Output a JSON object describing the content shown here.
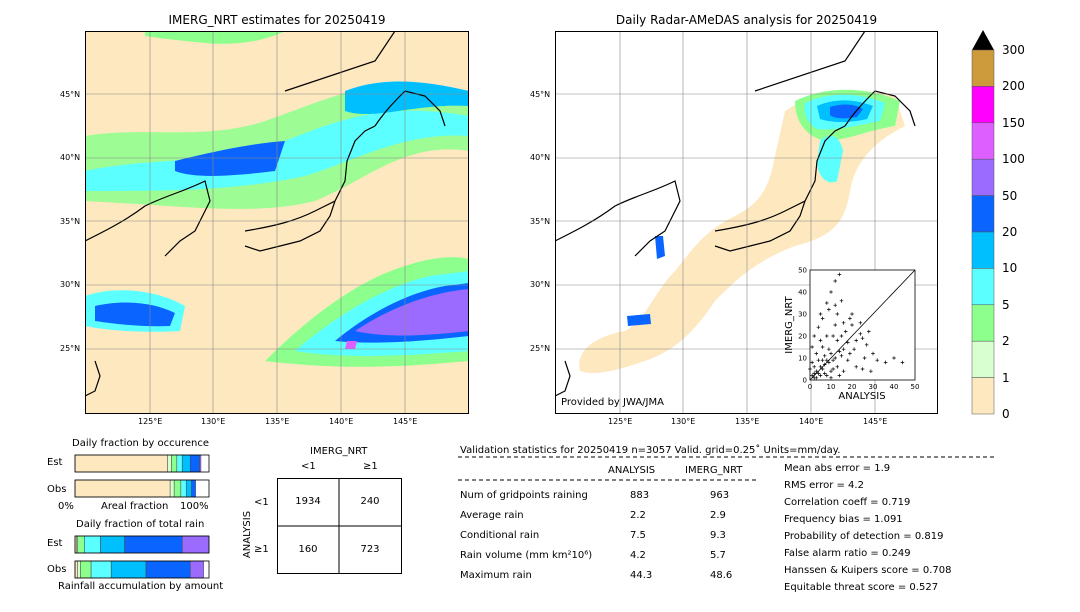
{
  "left_map": {
    "title": "IMERG_NRT estimates for 20250419",
    "lat_labels": [
      "45°N",
      "40°N",
      "35°N",
      "30°N",
      "25°N"
    ],
    "lon_labels": [
      "125°E",
      "130°E",
      "135°E",
      "140°E",
      "145°E"
    ]
  },
  "right_map": {
    "title": "Daily Radar-AMeDAS analysis for 20250419",
    "lat_labels": [
      "45°N",
      "40°N",
      "35°N",
      "30°N",
      "25°N"
    ],
    "lon_labels": [
      "125°E",
      "130°E",
      "135°E",
      "140°E",
      "145°E"
    ],
    "credit": "Provided by JWA/JMA"
  },
  "colorbar": {
    "labels": [
      "300",
      "200",
      "150",
      "100",
      "50",
      "20",
      "10",
      "5",
      "2",
      "1",
      "0"
    ],
    "colors": [
      "#cd9a3c",
      "#ff00ff",
      "#dd5fff",
      "#9b6bff",
      "#0a64ff",
      "#00bfff",
      "#5cffff",
      "#8cff8c",
      "#d8ffd0",
      "#fde8c0"
    ]
  },
  "occurrence": {
    "title": "Daily fraction by occurence",
    "row_est": "Est",
    "row_obs": "Obs",
    "axis_left": "0%",
    "axis_mid": "Areal fraction",
    "axis_right": "100%"
  },
  "rainfall": {
    "title": "Daily fraction of total rain",
    "row_est": "Est",
    "row_obs": "Obs",
    "caption": "Rainfall accumulation by amount"
  },
  "contingency": {
    "title": "IMERG_NRT",
    "col_lt": "<1",
    "col_ge": "≥1",
    "row_axis": "ANALYSIS",
    "row_lt": "<1",
    "row_ge": "≥1",
    "cells": [
      "1934",
      "240",
      "160",
      "723"
    ]
  },
  "validation": {
    "header": "Validation statistics for 20250419  n=3057 Valid. grid=0.25˚ Units=mm/day.",
    "col_analysis": "ANALYSIS",
    "col_imerg": "IMERG_NRT",
    "rows": [
      {
        "label": "Num of gridpoints raining",
        "analysis": "883",
        "imerg": "963"
      },
      {
        "label": "Average rain",
        "analysis": "2.2",
        "imerg": "2.9"
      },
      {
        "label": "Conditional rain",
        "analysis": "7.5",
        "imerg": "9.3"
      },
      {
        "label": "Rain volume (mm km²10⁶)",
        "analysis": "4.2",
        "imerg": "5.7"
      },
      {
        "label": "Maximum rain",
        "analysis": "44.3",
        "imerg": "48.6"
      }
    ],
    "scores": [
      "Mean abs error =    1.9",
      "RMS error =    4.2",
      "Correlation coeff =  0.719",
      "Frequency bias =  1.091",
      "Probability of detection =  0.819",
      "False alarm ratio =  0.249",
      "Hanssen & Kuipers score =  0.708",
      "Equitable threat score =  0.527"
    ]
  },
  "chart_data": [
    {
      "type": "scatter",
      "xlabel": "ANALYSIS",
      "ylabel": "IMERG_NRT",
      "xlim": [
        0,
        50
      ],
      "ylim": [
        0,
        50
      ],
      "x_ticks": [
        "0",
        "10",
        "20",
        "30",
        "40",
        "50"
      ],
      "y_ticks": [
        "0",
        "10",
        "20",
        "30",
        "40",
        "50"
      ],
      "points": [
        [
          1,
          2
        ],
        [
          2,
          1
        ],
        [
          3,
          4
        ],
        [
          4,
          3
        ],
        [
          5,
          6
        ],
        [
          6,
          5
        ],
        [
          2,
          6
        ],
        [
          7,
          3
        ],
        [
          8,
          9
        ],
        [
          9,
          8
        ],
        [
          10,
          12
        ],
        [
          12,
          10
        ],
        [
          3,
          12
        ],
        [
          6,
          15
        ],
        [
          11,
          5
        ],
        [
          14,
          13
        ],
        [
          13,
          18
        ],
        [
          15,
          20
        ],
        [
          16,
          14
        ],
        [
          18,
          17
        ],
        [
          17,
          22
        ],
        [
          20,
          25
        ],
        [
          12,
          25
        ],
        [
          8,
          20
        ],
        [
          5,
          18
        ],
        [
          4,
          9
        ],
        [
          1,
          8
        ],
        [
          0,
          5
        ],
        [
          2,
          3
        ],
        [
          7,
          11
        ],
        [
          9,
          14
        ],
        [
          10,
          4
        ],
        [
          19,
          12
        ],
        [
          22,
          18
        ],
        [
          24,
          21
        ],
        [
          25,
          19
        ],
        [
          27,
          16
        ],
        [
          30,
          12
        ],
        [
          5,
          30
        ],
        [
          8,
          35
        ],
        [
          10,
          40
        ],
        [
          12,
          45
        ],
        [
          14,
          48
        ],
        [
          6,
          28
        ],
        [
          9,
          32
        ],
        [
          13,
          30
        ],
        [
          16,
          26
        ],
        [
          20,
          30
        ],
        [
          24,
          26
        ],
        [
          28,
          22
        ],
        [
          3,
          1
        ],
        [
          5,
          2
        ],
        [
          6,
          9
        ],
        [
          7,
          7
        ],
        [
          11,
          9
        ],
        [
          15,
          11
        ],
        [
          18,
          9
        ],
        [
          21,
          14
        ],
        [
          26,
          10
        ],
        [
          32,
          9
        ],
        [
          36,
          8
        ],
        [
          40,
          10
        ],
        [
          44,
          8
        ],
        [
          2,
          20
        ],
        [
          4,
          24
        ],
        [
          1,
          15
        ],
        [
          11,
          20
        ],
        [
          12,
          34
        ],
        [
          15,
          36
        ],
        [
          19,
          28
        ],
        [
          8,
          2
        ],
        [
          10,
          1
        ],
        [
          13,
          6
        ],
        [
          16,
          4
        ],
        [
          14,
          2
        ],
        [
          22,
          6
        ],
        [
          25,
          5
        ],
        [
          29,
          4
        ]
      ]
    },
    {
      "type": "bar",
      "title": "Daily fraction by occurence",
      "categories": [
        "Est",
        "Obs"
      ],
      "series": [
        {
          "name": "0",
          "values": [
            0.69,
            0.71
          ]
        },
        {
          "name": "1",
          "values": [
            0.03,
            0.03
          ]
        },
        {
          "name": "2",
          "values": [
            0.04,
            0.05
          ]
        },
        {
          "name": "5",
          "values": [
            0.04,
            0.04
          ]
        },
        {
          "name": "10",
          "values": [
            0.06,
            0.04
          ]
        },
        {
          "name": "20",
          "values": [
            0.07,
            0.03
          ]
        },
        {
          "name": "50",
          "values": [
            0.01,
            0.0
          ]
        }
      ]
    },
    {
      "type": "bar",
      "title": "Daily fraction of total rain",
      "categories": [
        "Est",
        "Obs"
      ],
      "series": [
        {
          "name": "0",
          "values": [
            0.01,
            0.02
          ]
        },
        {
          "name": "1",
          "values": [
            0.01,
            0.02
          ]
        },
        {
          "name": "2",
          "values": [
            0.05,
            0.08
          ]
        },
        {
          "name": "5",
          "values": [
            0.12,
            0.15
          ]
        },
        {
          "name": "10",
          "values": [
            0.18,
            0.26
          ]
        },
        {
          "name": "20",
          "values": [
            0.43,
            0.33
          ]
        },
        {
          "name": "50",
          "values": [
            0.2,
            0.1
          ]
        }
      ]
    }
  ]
}
